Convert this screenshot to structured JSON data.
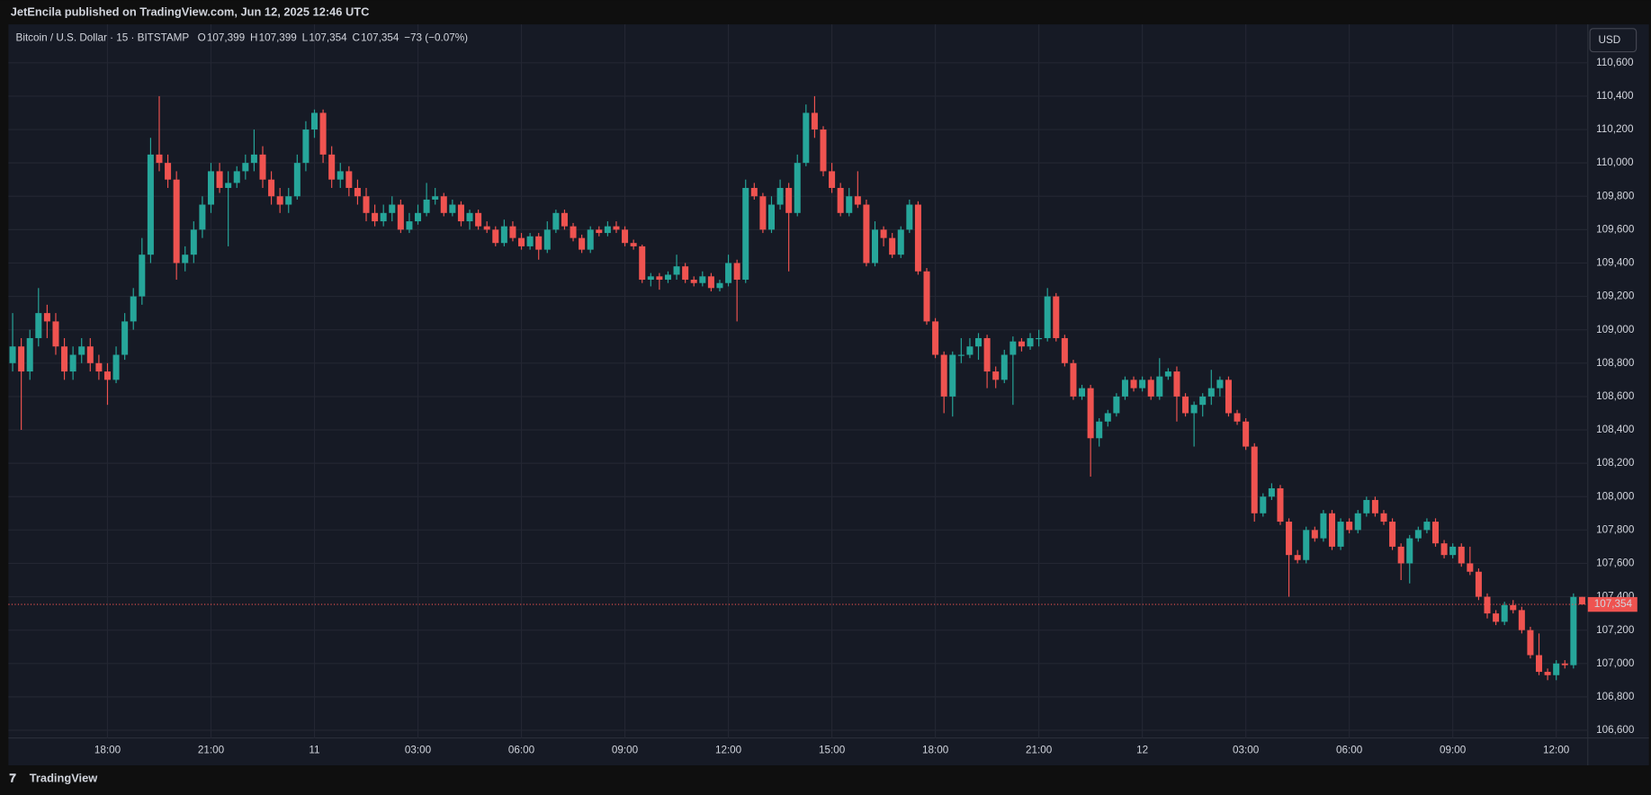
{
  "header": {
    "publisher": "JetEncila published on TradingView.com, Jun 12, 2025 12:46 UTC"
  },
  "footer": {
    "brand": "TradingView"
  },
  "chart_data": {
    "type": "candlestick",
    "title": "Bitcoin / U.S. Dollar · 15 · BITSTAMP",
    "ohlc_names": [
      "O",
      "H",
      "L",
      "C"
    ],
    "ohlc_labels": [
      "107,399",
      "107,399",
      "107,354",
      "107,354"
    ],
    "change_label": "−73 (−0.07%)",
    "currency": "USD",
    "last_price": {
      "value": 107354,
      "label": "107,354"
    },
    "up_color": "#26a69a",
    "down_color": "#ef5350",
    "grid": true,
    "ylim": [
      106560,
      110830
    ],
    "yticks": [
      {
        "value": 106600,
        "label": "106,600"
      },
      {
        "value": 106800,
        "label": "106,800"
      },
      {
        "value": 107000,
        "label": "107,000"
      },
      {
        "value": 107200,
        "label": "107,200"
      },
      {
        "value": 107400,
        "label": "107,400"
      },
      {
        "value": 107600,
        "label": "107,600"
      },
      {
        "value": 107800,
        "label": "107,800"
      },
      {
        "value": 108000,
        "label": "108,000"
      },
      {
        "value": 108200,
        "label": "108,200"
      },
      {
        "value": 108400,
        "label": "108,400"
      },
      {
        "value": 108600,
        "label": "108,600"
      },
      {
        "value": 108800,
        "label": "108,800"
      },
      {
        "value": 109000,
        "label": "109,000"
      },
      {
        "value": 109200,
        "label": "109,200"
      },
      {
        "value": 109400,
        "label": "109,400"
      },
      {
        "value": 109600,
        "label": "109,600"
      },
      {
        "value": 109800,
        "label": "109,800"
      },
      {
        "value": 110000,
        "label": "110,000"
      },
      {
        "value": 110200,
        "label": "110,200"
      },
      {
        "value": 110400,
        "label": "110,400"
      },
      {
        "value": 110600,
        "label": "110,600"
      }
    ],
    "xticks": [
      {
        "value": 11,
        "label": "18:00"
      },
      {
        "value": 23,
        "label": "21:00"
      },
      {
        "value": 35,
        "label": "11"
      },
      {
        "value": 47,
        "label": "03:00"
      },
      {
        "value": 59,
        "label": "06:00"
      },
      {
        "value": 71,
        "label": "09:00"
      },
      {
        "value": 83,
        "label": "12:00"
      },
      {
        "value": 95,
        "label": "15:00"
      },
      {
        "value": 107,
        "label": "18:00"
      },
      {
        "value": 119,
        "label": "21:00"
      },
      {
        "value": 131,
        "label": "12"
      },
      {
        "value": 143,
        "label": "03:00"
      },
      {
        "value": 155,
        "label": "06:00"
      },
      {
        "value": 167,
        "label": "09:00"
      },
      {
        "value": 179,
        "label": "12:00"
      }
    ],
    "candles": [
      [
        108800,
        109100,
        108750,
        108900
      ],
      [
        108900,
        108950,
        108400,
        108750
      ],
      [
        108750,
        109000,
        108700,
        108950
      ],
      [
        108950,
        109250,
        108900,
        109100
      ],
      [
        109100,
        109150,
        108950,
        109050
      ],
      [
        109050,
        109100,
        108850,
        108900
      ],
      [
        108900,
        108950,
        108700,
        108750
      ],
      [
        108750,
        108900,
        108700,
        108850
      ],
      [
        108850,
        108950,
        108800,
        108900
      ],
      [
        108900,
        108950,
        108750,
        108800
      ],
      [
        108800,
        108850,
        108700,
        108750
      ],
      [
        108750,
        108800,
        108550,
        108700
      ],
      [
        108700,
        108900,
        108680,
        108850
      ],
      [
        108850,
        109100,
        108820,
        109050
      ],
      [
        109050,
        109250,
        109000,
        109200
      ],
      [
        109200,
        109550,
        109150,
        109450
      ],
      [
        109450,
        110150,
        109400,
        110050
      ],
      [
        110050,
        110400,
        109950,
        110000
      ],
      [
        110000,
        110050,
        109850,
        109900
      ],
      [
        109900,
        109950,
        109300,
        109400
      ],
      [
        109400,
        109500,
        109350,
        109450
      ],
      [
        109450,
        109650,
        109400,
        109600
      ],
      [
        109600,
        109800,
        109550,
        109750
      ],
      [
        109750,
        110000,
        109700,
        109950
      ],
      [
        109950,
        110000,
        109820,
        109850
      ],
      [
        109850,
        109950,
        109500,
        109880
      ],
      [
        109880,
        109980,
        109850,
        109950
      ],
      [
        109950,
        110050,
        109900,
        110000
      ],
      [
        110000,
        110200,
        109950,
        110050
      ],
      [
        110050,
        110100,
        109850,
        109900
      ],
      [
        109900,
        109950,
        109750,
        109800
      ],
      [
        109800,
        109850,
        109700,
        109750
      ],
      [
        109750,
        109850,
        109700,
        109800
      ],
      [
        109800,
        110050,
        109780,
        110000
      ],
      [
        110000,
        110250,
        109950,
        110200
      ],
      [
        110200,
        110320,
        110150,
        110300
      ],
      [
        110300,
        110320,
        110000,
        110050
      ],
      [
        110050,
        110100,
        109850,
        109900
      ],
      [
        109900,
        110000,
        109850,
        109950
      ],
      [
        109950,
        109980,
        109800,
        109850
      ],
      [
        109850,
        109900,
        109750,
        109800
      ],
      [
        109800,
        109850,
        109650,
        109700
      ],
      [
        109700,
        109750,
        109620,
        109650
      ],
      [
        109650,
        109750,
        109620,
        109700
      ],
      [
        109700,
        109800,
        109650,
        109750
      ],
      [
        109750,
        109780,
        109580,
        109600
      ],
      [
        109600,
        109700,
        109580,
        109650
      ],
      [
        109650,
        109750,
        109630,
        109700
      ],
      [
        109700,
        109880,
        109680,
        109780
      ],
      [
        109780,
        109850,
        109750,
        109800
      ],
      [
        109800,
        109820,
        109680,
        109700
      ],
      [
        109700,
        109780,
        109680,
        109750
      ],
      [
        109750,
        109770,
        109620,
        109650
      ],
      [
        109650,
        109720,
        109600,
        109700
      ],
      [
        109700,
        109720,
        109600,
        109620
      ],
      [
        109620,
        109650,
        109580,
        109600
      ],
      [
        109600,
        109620,
        109500,
        109520
      ],
      [
        109520,
        109660,
        109500,
        109620
      ],
      [
        109620,
        109650,
        109530,
        109550
      ],
      [
        109550,
        109580,
        109480,
        109500
      ],
      [
        109500,
        109580,
        109480,
        109560
      ],
      [
        109560,
        109580,
        109420,
        109480
      ],
      [
        109480,
        109650,
        109460,
        109600
      ],
      [
        109600,
        109720,
        109580,
        109700
      ],
      [
        109700,
        109720,
        109600,
        109620
      ],
      [
        109620,
        109640,
        109530,
        109550
      ],
      [
        109550,
        109570,
        109460,
        109480
      ],
      [
        109480,
        109620,
        109460,
        109600
      ],
      [
        109600,
        109620,
        109560,
        109580
      ],
      [
        109580,
        109650,
        109560,
        109620
      ],
      [
        109620,
        109650,
        109580,
        109600
      ],
      [
        109600,
        109620,
        109500,
        109520
      ],
      [
        109520,
        109540,
        109480,
        109500
      ],
      [
        109500,
        109510,
        109280,
        109300
      ],
      [
        109300,
        109340,
        109260,
        109320
      ],
      [
        109320,
        109340,
        109240,
        109300
      ],
      [
        109300,
        109350,
        109280,
        109330
      ],
      [
        109330,
        109450,
        109300,
        109380
      ],
      [
        109380,
        109400,
        109280,
        109300
      ],
      [
        109300,
        109320,
        109260,
        109280
      ],
      [
        109280,
        109350,
        109260,
        109320
      ],
      [
        109320,
        109340,
        109230,
        109250
      ],
      [
        109250,
        109300,
        109230,
        109280
      ],
      [
        109280,
        109450,
        109260,
        109400
      ],
      [
        109400,
        109420,
        109050,
        109300
      ],
      [
        109300,
        109900,
        109280,
        109850
      ],
      [
        109850,
        109880,
        109780,
        109800
      ],
      [
        109800,
        109820,
        109580,
        109600
      ],
      [
        109600,
        109800,
        109580,
        109750
      ],
      [
        109750,
        109900,
        109720,
        109850
      ],
      [
        109850,
        109880,
        109350,
        109700
      ],
      [
        109700,
        110050,
        109680,
        110000
      ],
      [
        110000,
        110350,
        109980,
        110300
      ],
      [
        110300,
        110400,
        110150,
        110200
      ],
      [
        110200,
        110220,
        109920,
        109950
      ],
      [
        109950,
        110000,
        109820,
        109850
      ],
      [
        109850,
        109880,
        109680,
        109700
      ],
      [
        109700,
        109850,
        109680,
        109800
      ],
      [
        109800,
        109950,
        109730,
        109750
      ],
      [
        109750,
        109780,
        109380,
        109400
      ],
      [
        109400,
        109650,
        109380,
        109600
      ],
      [
        109600,
        109620,
        109500,
        109550
      ],
      [
        109550,
        109580,
        109430,
        109450
      ],
      [
        109450,
        109620,
        109430,
        109600
      ],
      [
        109600,
        109780,
        109580,
        109750
      ],
      [
        109750,
        109770,
        109330,
        109350
      ],
      [
        109350,
        109370,
        109030,
        109050
      ],
      [
        109050,
        109070,
        108830,
        108850
      ],
      [
        108850,
        108870,
        108500,
        108600
      ],
      [
        108600,
        108870,
        108480,
        108850
      ],
      [
        108850,
        108950,
        108800,
        108850
      ],
      [
        108850,
        108950,
        108830,
        108900
      ],
      [
        108900,
        108980,
        108820,
        108950
      ],
      [
        108950,
        108970,
        108650,
        108750
      ],
      [
        108750,
        108780,
        108650,
        108700
      ],
      [
        108700,
        108880,
        108680,
        108850
      ],
      [
        108850,
        108960,
        108550,
        108930
      ],
      [
        108930,
        108950,
        108870,
        108900
      ],
      [
        108900,
        108980,
        108880,
        108950
      ],
      [
        108950,
        109000,
        108900,
        108950
      ],
      [
        108950,
        109250,
        108930,
        109200
      ],
      [
        109200,
        109220,
        108930,
        108950
      ],
      [
        108950,
        108970,
        108780,
        108800
      ],
      [
        108800,
        108820,
        108580,
        108600
      ],
      [
        108600,
        108670,
        108580,
        108650
      ],
      [
        108650,
        108670,
        108120,
        108350
      ],
      [
        108350,
        108470,
        108300,
        108450
      ],
      [
        108450,
        108520,
        108420,
        108500
      ],
      [
        108500,
        108620,
        108480,
        108600
      ],
      [
        108600,
        108720,
        108580,
        108700
      ],
      [
        108700,
        108720,
        108630,
        108650
      ],
      [
        108650,
        108720,
        108630,
        108700
      ],
      [
        108700,
        108720,
        108580,
        108600
      ],
      [
        108600,
        108830,
        108580,
        108720
      ],
      [
        108720,
        108770,
        108700,
        108750
      ],
      [
        108750,
        108780,
        108450,
        108600
      ],
      [
        108600,
        108620,
        108480,
        108500
      ],
      [
        108500,
        108570,
        108300,
        108550
      ],
      [
        108550,
        108620,
        108480,
        108600
      ],
      [
        108600,
        108760,
        108550,
        108650
      ],
      [
        108650,
        108720,
        108600,
        108700
      ],
      [
        108700,
        108720,
        108480,
        108500
      ],
      [
        108500,
        108520,
        108430,
        108450
      ],
      [
        108450,
        108470,
        108280,
        108300
      ],
      [
        108300,
        108320,
        107850,
        107900
      ],
      [
        107900,
        108020,
        107880,
        108000
      ],
      [
        108000,
        108080,
        107980,
        108050
      ],
      [
        108050,
        108070,
        107830,
        107850
      ],
      [
        107850,
        107870,
        107400,
        107650
      ],
      [
        107650,
        107680,
        107600,
        107620
      ],
      [
        107620,
        107820,
        107600,
        107800
      ],
      [
        107800,
        107820,
        107730,
        107750
      ],
      [
        107750,
        107920,
        107730,
        107900
      ],
      [
        107900,
        107920,
        107680,
        107700
      ],
      [
        107700,
        107870,
        107680,
        107850
      ],
      [
        107850,
        107870,
        107780,
        107800
      ],
      [
        107800,
        107920,
        107780,
        107900
      ],
      [
        107900,
        108000,
        107880,
        107980
      ],
      [
        107980,
        108000,
        107880,
        107900
      ],
      [
        107900,
        107920,
        107830,
        107850
      ],
      [
        107850,
        107870,
        107680,
        107700
      ],
      [
        107700,
        107720,
        107500,
        107600
      ],
      [
        107600,
        107770,
        107480,
        107750
      ],
      [
        107750,
        107820,
        107730,
        107800
      ],
      [
        107800,
        107870,
        107780,
        107850
      ],
      [
        107850,
        107870,
        107700,
        107720
      ],
      [
        107720,
        107740,
        107630,
        107650
      ],
      [
        107650,
        107720,
        107630,
        107700
      ],
      [
        107700,
        107720,
        107580,
        107600
      ],
      [
        107600,
        107700,
        107530,
        107550
      ],
      [
        107550,
        107570,
        107380,
        107400
      ],
      [
        107400,
        107420,
        107270,
        107300
      ],
      [
        107300,
        107320,
        107230,
        107250
      ],
      [
        107250,
        107370,
        107230,
        107350
      ],
      [
        107350,
        107380,
        107300,
        107320
      ],
      [
        107320,
        107340,
        107180,
        107200
      ],
      [
        107200,
        107220,
        107030,
        107050
      ],
      [
        107050,
        107180,
        106930,
        106950
      ],
      [
        106950,
        106970,
        106900,
        106930
      ],
      [
        106930,
        107020,
        106900,
        107000
      ],
      [
        107000,
        107020,
        106970,
        106990
      ],
      [
        106990,
        107420,
        106970,
        107399
      ],
      [
        107399,
        107399,
        107354,
        107354
      ]
    ]
  }
}
